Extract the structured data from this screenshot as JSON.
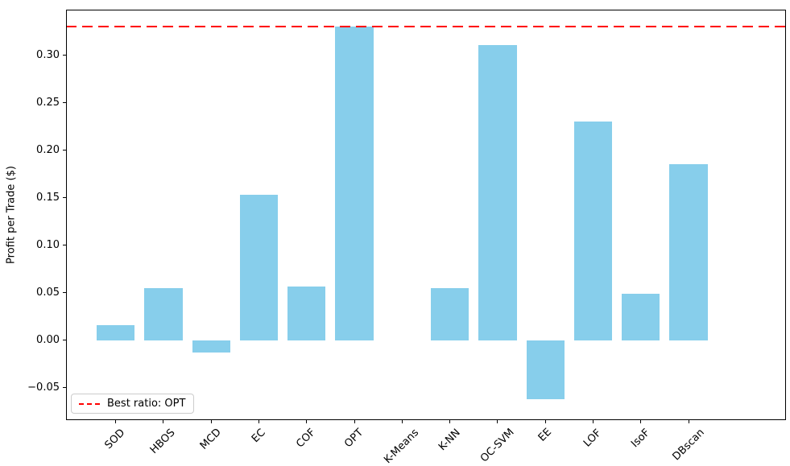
{
  "chart_data": {
    "type": "bar",
    "title": "",
    "ylabel": "Profit per Trade ($)",
    "xlabel": "",
    "categories": [
      "SOD",
      "HBOS",
      "MCD",
      "EC",
      "COF",
      "OPT",
      "K-Means",
      "K-NN",
      "OC-SVM",
      "EE",
      "LOF",
      "IsoF",
      "DBscan"
    ],
    "values": [
      0.016,
      0.055,
      -0.013,
      0.153,
      0.057,
      0.33,
      0.0,
      0.055,
      0.311,
      -0.062,
      0.23,
      0.049,
      0.185
    ],
    "bar_color": "#87CEEB",
    "reference_line": {
      "value": 0.33,
      "color": "#ff0000",
      "style": "dashed"
    },
    "legend": {
      "position": "lower-left",
      "entries": [
        {
          "label": "Best ratio: OPT",
          "color": "#ff0000",
          "style": "dashed"
        }
      ]
    },
    "ylim": [
      -0.084,
      0.348
    ],
    "yticks": [
      {
        "value": -0.05,
        "label": "−0.05"
      },
      {
        "value": 0.0,
        "label": "0.00"
      },
      {
        "value": 0.05,
        "label": "0.05"
      },
      {
        "value": 0.1,
        "label": "0.10"
      },
      {
        "value": 0.15,
        "label": "0.15"
      },
      {
        "value": 0.2,
        "label": "0.20"
      },
      {
        "value": 0.25,
        "label": "0.25"
      },
      {
        "value": 0.3,
        "label": "0.30"
      }
    ],
    "grid": false,
    "spine_color": "#000000"
  }
}
